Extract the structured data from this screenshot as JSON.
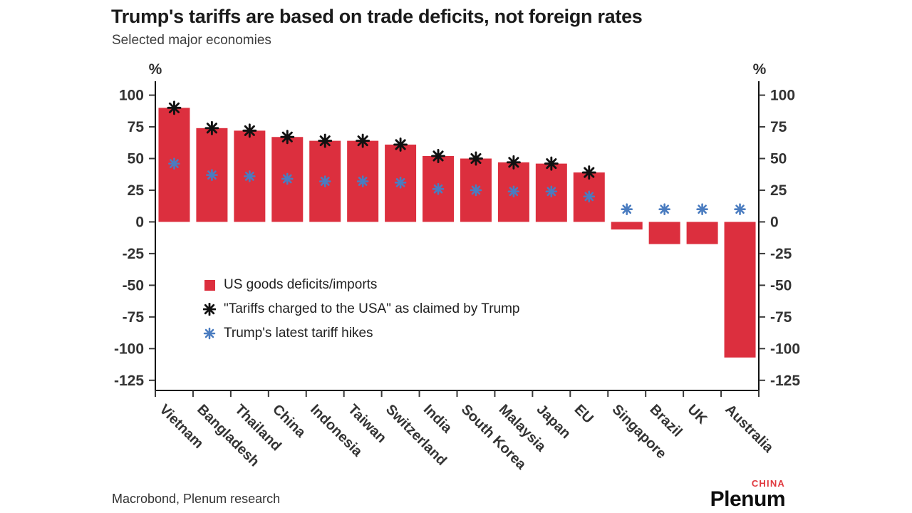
{
  "header": {
    "title": "Trump's tariffs are based on trade deficits, not foreign rates",
    "subtitle": "Selected major economies"
  },
  "chart_data": {
    "type": "bar",
    "title": "Trump's tariffs are based on trade deficits, not foreign rates",
    "subtitle": "Selected major economies",
    "ylabel": "%",
    "ylim": [
      -133,
      111
    ],
    "yticks": [
      100,
      75,
      50,
      25,
      0,
      -25,
      -50,
      -75,
      -100,
      -125
    ],
    "grid": false,
    "legend_position": "inside-left",
    "axis_color": "#111111",
    "tick_color": "#3a3a3a",
    "tick_label_color": "#333333",
    "categories": [
      "Vietnam",
      "Bangladesh",
      "Thailand",
      "China",
      "Indonesia",
      "Taiwan",
      "Switzerland",
      "India",
      "South Korea",
      "Malaysia",
      "Japan",
      "EU",
      "Singapore",
      "Brazil",
      "UK",
      "Australia"
    ],
    "series": [
      {
        "name": "US goods deficits/imports",
        "kind": "bar",
        "color": "#DC2F3E",
        "values": [
          90,
          74,
          72,
          67,
          64,
          64,
          61,
          52,
          50,
          47,
          46,
          39,
          -6,
          -17.5,
          -17.5,
          -107
        ]
      },
      {
        "name": "\"Tariffs charged to the USA\" as claimed by Trump",
        "kind": "asterisk",
        "color": "#111111",
        "values": [
          90,
          74,
          72,
          67,
          64,
          64,
          61,
          52,
          50,
          47,
          46,
          39,
          null,
          null,
          null,
          null
        ]
      },
      {
        "name": "Trump's latest tariff hikes",
        "kind": "asterisk",
        "color": "#4A7CC0",
        "values": [
          46,
          37,
          36,
          34,
          32,
          32,
          31,
          26,
          25,
          24,
          24,
          20,
          10,
          10,
          10,
          10
        ]
      }
    ]
  },
  "footer": {
    "source": "Macrobond, Plenum research",
    "brand": "Plenum",
    "brand_sup": "CHINA",
    "brand_sup_color": "#E0383E"
  }
}
